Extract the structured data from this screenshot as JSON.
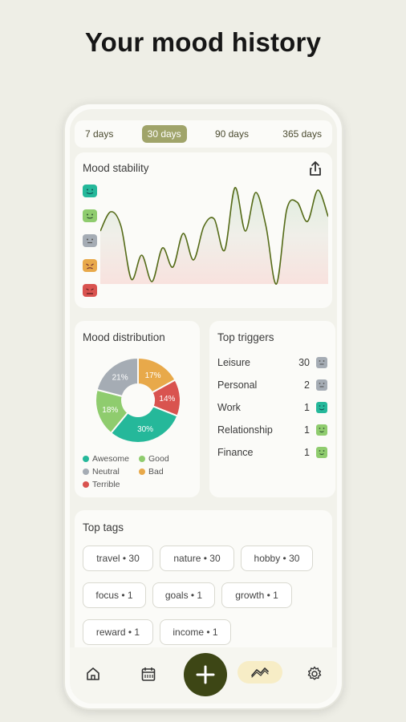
{
  "headline": "Your mood history",
  "range": [
    "7 days",
    "30 days",
    "90 days",
    "365 days"
  ],
  "range_selected": "30 days",
  "stability": {
    "title": "Mood stability",
    "moods": [
      "Awesome",
      "Good",
      "Neutral",
      "Bad",
      "Terrible"
    ],
    "series": [
      2.2,
      3.0,
      2.4,
      0.2,
      1.2,
      0.1,
      1.5,
      0.7,
      2.1,
      1.0,
      2.4,
      2.7,
      1.4,
      4.0,
      2.2,
      3.8,
      2.4,
      0.0,
      3.1,
      3.4,
      2.6,
      3.9,
      2.8
    ]
  },
  "distribution": {
    "title": "Mood distribution",
    "slices": [
      {
        "label": "Bad",
        "pct": 17,
        "text": "17%",
        "color": "#e8a94a"
      },
      {
        "label": "Terrible",
        "pct": 14,
        "text": "14%",
        "color": "#d9534f"
      },
      {
        "label": "Awesome",
        "pct": 30,
        "text": "30%",
        "color": "#25b89a"
      },
      {
        "label": "Good",
        "pct": 18,
        "text": "18%",
        "color": "#8fcc6e"
      },
      {
        "label": "Neutral",
        "pct": 21,
        "text": "21%",
        "color": "#a5acb4"
      }
    ],
    "legend": [
      {
        "label": "Awesome",
        "color": "#25b89a"
      },
      {
        "label": "Good",
        "color": "#8fcc6e"
      },
      {
        "label": "Neutral",
        "color": "#a5acb4"
      },
      {
        "label": "Bad",
        "color": "#e8a94a"
      },
      {
        "label": "Terrible",
        "color": "#d9534f"
      }
    ]
  },
  "triggers": {
    "title": "Top triggers",
    "items": [
      {
        "name": "Leisure",
        "count": "30",
        "mood": "neutral",
        "color": "#a5acb4"
      },
      {
        "name": "Personal",
        "count": "2",
        "mood": "neutral",
        "color": "#a5acb4"
      },
      {
        "name": "Work",
        "count": "1",
        "mood": "awesome",
        "color": "#25b89a"
      },
      {
        "name": "Relationship",
        "count": "1",
        "mood": "good",
        "color": "#8fcc6e"
      },
      {
        "name": "Finance",
        "count": "1",
        "mood": "good",
        "color": "#8fcc6e"
      }
    ]
  },
  "tags": {
    "title": "Top tags",
    "items": [
      "travel • 30",
      "nature • 30",
      "hobby • 30",
      "focus • 1",
      "goals • 1",
      "growth • 1",
      "reward • 1",
      "income • 1"
    ]
  },
  "nav": {
    "icons": [
      "home-icon",
      "calendar-icon",
      "add-icon",
      "stats-icon",
      "settings-icon"
    ],
    "active": "stats-icon"
  },
  "colors": {
    "accent": "#a0a46a",
    "fab": "#3d4615",
    "active_pill": "#f7edc6"
  }
}
